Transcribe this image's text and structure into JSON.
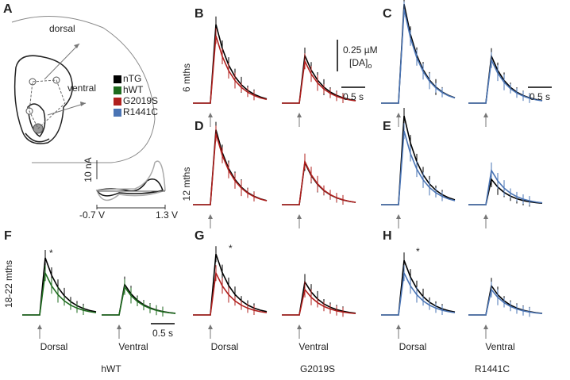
{
  "panel_a": {
    "letter": "A",
    "dorsal": "dorsal",
    "ventral": "ventral",
    "legend": [
      {
        "name": "nTG",
        "color": "#000000"
      },
      {
        "name": "hWT",
        "color": "#1e6b1e"
      },
      {
        "name": "G2019S",
        "color": "#b0201e"
      },
      {
        "name": "R1441C",
        "color": "#4a74b4"
      }
    ],
    "inset": {
      "scale": "10 nA",
      "v_min": "-0.7 V",
      "v_max": "1.3 V"
    }
  },
  "rows": [
    "6 mths",
    "12 mths",
    "18-22 mths"
  ],
  "columns": [
    "hWT",
    "G2019S",
    "R1441C"
  ],
  "scale_bar": {
    "concentration": "0.25 µM",
    "species": "[DA]",
    "subscript": "o"
  },
  "panels": [
    {
      "letter": "B",
      "time_bar": "0.5 s",
      "series": [
        {
          "color": "#000000",
          "values": [
            0.62,
            0.375
          ]
        },
        {
          "color": "#b0201e",
          "values": [
            0.53,
            0.33
          ]
        }
      ]
    },
    {
      "letter": "C",
      "time_bar": "0.5 s",
      "series": [
        {
          "color": "#000000",
          "values": [
            0.78,
            0.37
          ]
        },
        {
          "color": "#4a74b4",
          "values": [
            0.74,
            0.34
          ]
        }
      ]
    },
    {
      "letter": "D",
      "series": [
        {
          "color": "#000000",
          "values": [
            0.59,
            0.33
          ]
        },
        {
          "color": "#b0201e",
          "values": [
            0.56,
            0.34
          ]
        }
      ]
    },
    {
      "letter": "E",
      "series": [
        {
          "color": "#000000",
          "values": [
            0.7,
            0.2
          ]
        },
        {
          "color": "#4a74b4",
          "values": [
            0.58,
            0.27
          ]
        }
      ]
    },
    {
      "letter": "F",
      "time_bar": "0.5 s",
      "asterisk": "*",
      "regions": [
        "Dorsal",
        "Ventral"
      ],
      "series": [
        {
          "color": "#000000",
          "values": [
            0.45,
            0.24
          ]
        },
        {
          "color": "#1e6b1e",
          "values": [
            0.33,
            0.22
          ]
        }
      ]
    },
    {
      "letter": "G",
      "asterisk": "*",
      "regions": [
        "Dorsal",
        "Ventral"
      ],
      "series": [
        {
          "color": "#000000",
          "values": [
            0.48,
            0.26
          ]
        },
        {
          "color": "#b0201e",
          "values": [
            0.33,
            0.2
          ]
        }
      ]
    },
    {
      "letter": "H",
      "asterisk": "*",
      "regions": [
        "Dorsal",
        "Ventral"
      ],
      "series": [
        {
          "color": "#000000",
          "values": [
            0.43,
            0.23
          ]
        },
        {
          "color": "#4a74b4",
          "values": [
            0.33,
            0.2
          ]
        }
      ]
    }
  ]
}
